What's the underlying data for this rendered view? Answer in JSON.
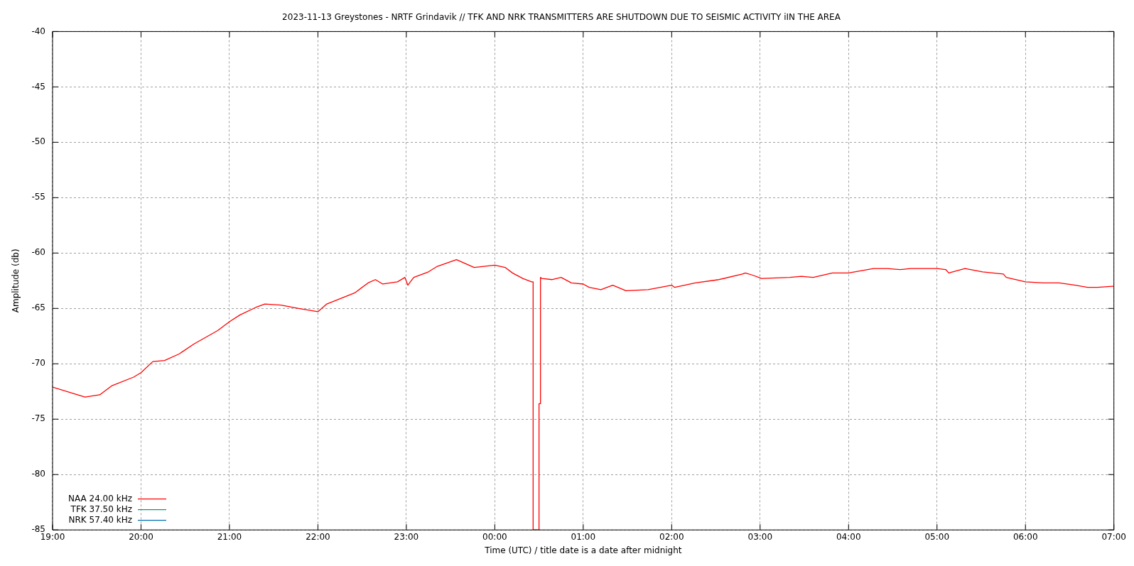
{
  "chart_data": {
    "type": "line",
    "title": "2023-11-13 Greystones - NRTF Grindavik // TFK AND NRK TRANSMITTERS ARE SHUTDOWN DUE TO SEISMIC ACTIVITY iIN THE AREA",
    "xlabel": "Time (UTC) / title date is a date after midnight",
    "ylabel": "Amplitude (db)",
    "xlim": [
      "2023-11-12T19:00",
      "2023-11-13T07:00"
    ],
    "xticks": [
      {
        "value": "2023-11-12T19:00",
        "label": "19:00"
      },
      {
        "value": "2023-11-12T20:00",
        "label": "20:00"
      },
      {
        "value": "2023-11-12T21:00",
        "label": "21:00"
      },
      {
        "value": "2023-11-12T22:00",
        "label": "22:00"
      },
      {
        "value": "2023-11-12T23:00",
        "label": "23:00"
      },
      {
        "value": "2023-11-13T00:00",
        "label": "00:00"
      },
      {
        "value": "2023-11-13T01:00",
        "label": "01:00"
      },
      {
        "value": "2023-11-13T02:00",
        "label": "02:00"
      },
      {
        "value": "2023-11-13T03:00",
        "label": "03:00"
      },
      {
        "value": "2023-11-13T04:00",
        "label": "04:00"
      },
      {
        "value": "2023-11-13T05:00",
        "label": "05:00"
      },
      {
        "value": "2023-11-13T06:00",
        "label": "06:00"
      },
      {
        "value": "2023-11-13T07:00",
        "label": "07:00"
      }
    ],
    "ylim": [
      -85,
      -40
    ],
    "yticks": [
      -85,
      -80,
      -75,
      -70,
      -65,
      -60,
      -55,
      -50,
      -45,
      -40
    ],
    "grid": true,
    "legend": "bottom left",
    "series": [
      {
        "name": "NAA 24.00 kHz",
        "color": "#ff0000",
        "x": [
          "2023-11-12T19:00",
          "2023-11-12T19:22",
          "2023-11-12T19:32",
          "2023-11-12T19:40",
          "2023-11-12T19:55",
          "2023-11-12T20:00",
          "2023-11-12T20:08",
          "2023-11-12T20:16",
          "2023-11-12T20:26",
          "2023-11-12T20:36",
          "2023-11-12T20:52",
          "2023-11-12T21:00",
          "2023-11-12T21:07",
          "2023-11-12T21:18",
          "2023-11-12T21:24",
          "2023-11-12T21:35",
          "2023-11-12T21:47",
          "2023-11-12T22:00",
          "2023-11-12T22:06",
          "2023-11-12T22:25",
          "2023-11-12T22:34",
          "2023-11-12T22:39",
          "2023-11-12T22:44",
          "2023-11-12T22:54",
          "2023-11-12T22:59",
          "2023-11-12T23:01",
          "2023-11-12T23:05",
          "2023-11-12T23:15",
          "2023-11-12T23:21",
          "2023-11-12T23:34",
          "2023-11-12T23:46",
          "2023-11-13T00:00",
          "2023-11-13T00:07",
          "2023-11-13T00:12",
          "2023-11-13T00:19",
          "2023-11-13T00:25",
          "2023-11-13T00:26",
          "2023-11-13T00:26",
          "2023-11-13T00:30",
          "2023-11-13T00:30",
          "2023-11-13T00:31",
          "2023-11-13T00:31",
          "2023-11-13T00:32",
          "2023-11-13T00:39",
          "2023-11-13T00:45",
          "2023-11-13T00:52",
          "2023-11-13T01:00",
          "2023-11-13T01:04",
          "2023-11-13T01:12",
          "2023-11-13T01:20",
          "2023-11-13T01:29",
          "2023-11-13T01:44",
          "2023-11-13T02:00",
          "2023-11-13T02:02",
          "2023-11-13T02:16",
          "2023-11-13T02:32",
          "2023-11-13T02:48",
          "2023-11-13T02:50",
          "2023-11-13T02:55",
          "2023-11-13T03:01",
          "2023-11-13T03:20",
          "2023-11-13T03:28",
          "2023-11-13T03:36",
          "2023-11-13T03:49",
          "2023-11-13T04:00",
          "2023-11-13T04:17",
          "2023-11-13T04:26",
          "2023-11-13T04:35",
          "2023-11-13T04:42",
          "2023-11-13T05:00",
          "2023-11-13T05:06",
          "2023-11-13T05:08",
          "2023-11-13T05:19",
          "2023-11-13T05:31",
          "2023-11-13T05:45",
          "2023-11-13T05:47",
          "2023-11-13T06:00",
          "2023-11-13T06:12",
          "2023-11-13T06:23",
          "2023-11-13T06:34",
          "2023-11-13T06:42",
          "2023-11-13T06:49",
          "2023-11-13T06:59",
          "2023-11-13T07:00"
        ],
        "values": [
          -72.1,
          -73.0,
          -72.8,
          -72.0,
          -71.2,
          -70.8,
          -69.8,
          -69.7,
          -69.1,
          -68.2,
          -67.0,
          -66.2,
          -65.6,
          -64.9,
          -64.6,
          -64.7,
          -65.0,
          -65.3,
          -64.6,
          -63.6,
          -62.7,
          -62.4,
          -62.8,
          -62.6,
          -62.2,
          -62.9,
          -62.2,
          -61.7,
          -61.2,
          -60.6,
          -61.3,
          -61.1,
          -61.3,
          -61.8,
          -62.3,
          -62.6,
          -62.6,
          -85,
          -85,
          -73.6,
          -73.6,
          -62.2,
          -62.3,
          -62.4,
          -62.2,
          -62.7,
          -62.8,
          -63.1,
          -63.3,
          -62.9,
          -63.4,
          -63.3,
          -62.9,
          -63.1,
          -62.7,
          -62.4,
          -61.9,
          -61.8,
          -62.0,
          -62.3,
          -62.2,
          -62.1,
          -62.2,
          -61.8,
          -61.8,
          -61.4,
          -61.4,
          -61.5,
          -61.4,
          -61.4,
          -61.5,
          -61.8,
          -61.4,
          -61.7,
          -61.9,
          -62.2,
          -62.6,
          -62.7,
          -62.7,
          -62.9,
          -63.1,
          -63.1,
          -63.0,
          -63.0
        ]
      },
      {
        "name": "TFK 37.50 kHz",
        "color": "#009e73"
      },
      {
        "name": "NRK 57.40 kHz",
        "color": "#0072b2"
      }
    ]
  }
}
